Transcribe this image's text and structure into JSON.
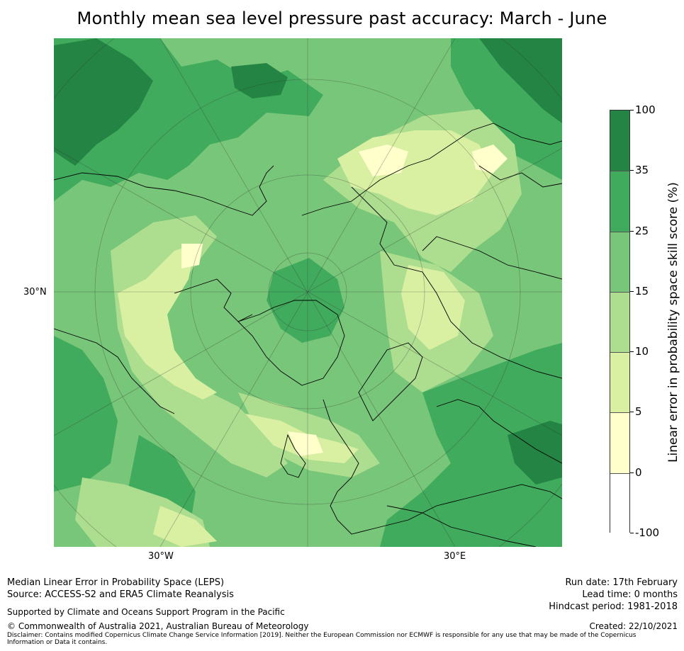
{
  "title": "Monthly mean sea level pressure past accuracy: March - June",
  "map": {
    "lat_label": "30°N",
    "lon_labels": [
      "30°W",
      "30°E"
    ],
    "colors": {
      "c0": "#ffffff",
      "c5": "#ffffcc",
      "c10": "#d9f0a3",
      "c15": "#addd8e",
      "c25": "#78c679",
      "c35": "#41ab5d",
      "c100": "#238443"
    }
  },
  "colorbar": {
    "title": "Linear error in probability space skill score (%)",
    "ticks": [
      "100",
      "35",
      "25",
      "15",
      "10",
      "5",
      "0",
      "-100"
    ],
    "segments": [
      {
        "range": "35-100",
        "color": "#238443"
      },
      {
        "range": "25-35",
        "color": "#41ab5d"
      },
      {
        "range": "15-25",
        "color": "#78c679"
      },
      {
        "range": "10-15",
        "color": "#addd8e"
      },
      {
        "range": "5-10",
        "color": "#d9f0a3"
      },
      {
        "range": "0-5",
        "color": "#ffffcc"
      },
      {
        "range": "-100-0",
        "color": "#ffffff"
      }
    ]
  },
  "footer": {
    "left_line1": "Median Linear Error in Probability Space (LEPS)",
    "left_line2": "Source: ACCESS-S2 and ERA5 Climate Reanalysis",
    "supported": "Supported by Climate and Oceans Support Program in the Pacific",
    "copyright": "© Commonwealth of Australia 2021, Australian Bureau of Meteorology",
    "disclaimer": "Disclaimer: Contains modified Copernicus Climate Change Service Information [2019]. Neither the European Commission nor ECMWF is responsible for any use that may be made of the Copernicus Information or Data it contains.",
    "run_date": "Run date: 17th February",
    "lead_time": "Lead time: 0 months",
    "hindcast": "Hindcast period: 1981-2018",
    "created": "Created: 22/10/2021"
  }
}
